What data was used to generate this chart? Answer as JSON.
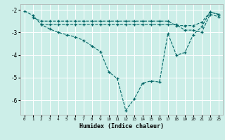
{
  "xlabel": "Humidex (Indice chaleur)",
  "bg_color": "#cceee8",
  "line_color": "#006666",
  "grid_color": "#ffffff",
  "xlim": [
    -0.5,
    23.5
  ],
  "ylim": [
    -6.65,
    -1.75
  ],
  "yticks": [
    -6,
    -5,
    -4,
    -3,
    -2
  ],
  "xticks": [
    0,
    1,
    2,
    3,
    4,
    5,
    6,
    7,
    8,
    9,
    10,
    11,
    12,
    13,
    14,
    15,
    16,
    17,
    18,
    19,
    20,
    21,
    22,
    23
  ],
  "line1_x": [
    0,
    1,
    2,
    3,
    4,
    5,
    6,
    7,
    8,
    9,
    10,
    11,
    12,
    13,
    14,
    15,
    16,
    17,
    18,
    19,
    20,
    21,
    22,
    23
  ],
  "line1_y": [
    -2.05,
    -2.25,
    -2.65,
    -2.85,
    -3.0,
    -3.1,
    -3.2,
    -3.35,
    -3.6,
    -3.85,
    -4.75,
    -5.05,
    -6.45,
    -5.95,
    -5.25,
    -5.15,
    -5.2,
    -3.05,
    -4.0,
    -3.9,
    -3.1,
    -2.75,
    -2.1,
    -2.2
  ],
  "line2_x": [
    1,
    2,
    3,
    4,
    5,
    6,
    7,
    8,
    9,
    10,
    11,
    12,
    13,
    14,
    15,
    16,
    17,
    18,
    19,
    20,
    21,
    22,
    23
  ],
  "line2_y": [
    -2.35,
    -2.5,
    -2.5,
    -2.5,
    -2.5,
    -2.5,
    -2.5,
    -2.5,
    -2.5,
    -2.5,
    -2.5,
    -2.5,
    -2.5,
    -2.5,
    -2.5,
    -2.5,
    -2.5,
    -2.7,
    -2.7,
    -2.7,
    -2.55,
    -2.1,
    -2.2
  ],
  "line3_x": [
    2,
    3,
    4,
    5,
    6,
    7,
    8,
    9,
    10,
    11,
    12,
    13,
    14,
    15,
    16,
    17,
    18,
    19,
    20,
    21,
    22,
    23
  ],
  "line3_y": [
    -2.65,
    -2.65,
    -2.65,
    -2.65,
    -2.65,
    -2.65,
    -2.65,
    -2.65,
    -2.65,
    -2.65,
    -2.65,
    -2.65,
    -2.65,
    -2.65,
    -2.65,
    -2.65,
    -2.65,
    -2.9,
    -2.9,
    -3.0,
    -2.2,
    -2.3
  ]
}
